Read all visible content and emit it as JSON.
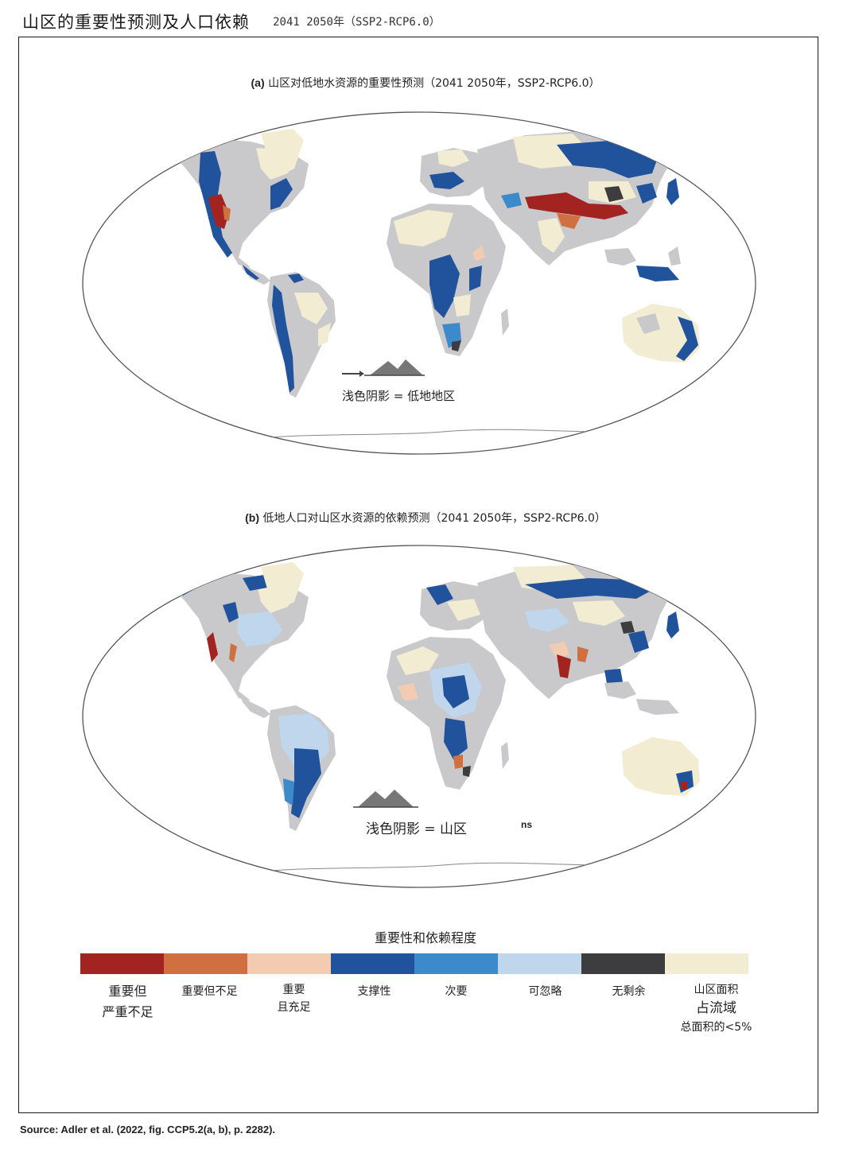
{
  "header": {
    "title": "山区的重要性预测及人口依赖",
    "period": "2041 2050年（SSP2-RCP6.0）"
  },
  "panel_a": {
    "label": "(a)",
    "title": "山区对低地水资源的重要性预测（2041 2050年，SSP2-RCP6.0）",
    "annotation": "浅色阴影 = 低地地区"
  },
  "panel_b": {
    "label": "(b)",
    "title": "低地人口对山区水资源的依赖预测（2041 2050年，SSP2-RCP6.0）",
    "annotation": "浅色阴影 = 山区",
    "annotation_fragment": "ns"
  },
  "legend": {
    "title": "重要性和依赖程度",
    "items": [
      {
        "line1": "重要但",
        "line2": "严重不足",
        "color": "#a32320"
      },
      {
        "line1": "重要但不足",
        "line2": "",
        "color": "#d07040"
      },
      {
        "line1": "重要",
        "line2": "且充足",
        "color": "#f2cbb0"
      },
      {
        "line1": "支撑性",
        "line2": "",
        "color": "#21529c"
      },
      {
        "line1": "次要",
        "line2": "",
        "color": "#3d8acb"
      },
      {
        "line1": "可忽略",
        "line2": "",
        "color": "#bfd6ec"
      },
      {
        "line1": "无剩余",
        "line2": "",
        "color": "#3d3d3f"
      },
      {
        "line1": "山区面积",
        "line2": "占流域",
        "line3": "总面积的<5%",
        "color": "#f1ecd2"
      }
    ]
  },
  "colors": {
    "land_gray": "#c9c9cc",
    "globe_outline": "#555555"
  },
  "source": "Source: Adler et al. (2022, fig. CCP5.2(a, b), p. 2282)."
}
